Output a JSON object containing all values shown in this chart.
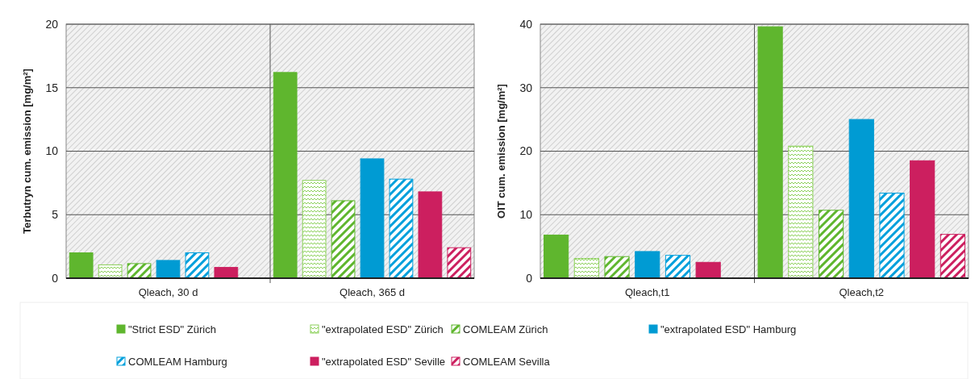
{
  "chart_data": [
    {
      "type": "bar",
      "ylabel": "Terbutryn cum. emission  [mg/m²]",
      "categories": [
        "Qleach, 30 d",
        "Qleach, 365 d"
      ],
      "ylim": [
        0,
        20
      ],
      "yticks": [
        0,
        5,
        10,
        15,
        20
      ],
      "grid": "y",
      "legend": "bottom",
      "series": [
        {
          "name": "\"Strict ESD\" Zürich",
          "color": "#5fb62e",
          "values": [
            2.0,
            16.2
          ]
        },
        {
          "name": "\"extrapolated ESD\" Zürich",
          "color": "#8cd05a",
          "values": [
            1.05,
            7.7
          ]
        },
        {
          "name": "COMLEAM Zürich",
          "color": "#5fb62e",
          "values": [
            1.15,
            6.1
          ]
        },
        {
          "name": "\"extrapolated ESD\" Hamburg",
          "color": "#009bd3",
          "values": [
            1.4,
            9.4
          ]
        },
        {
          "name": "COMLEAM Hamburg",
          "color": "#00a0dc",
          "values": [
            2.0,
            7.8
          ]
        },
        {
          "name": "\"extrapolated ESD\" Seville",
          "color": "#cc1f5f",
          "values": [
            0.85,
            6.8
          ]
        },
        {
          "name": "COMLEAM Sevilla",
          "color": "#cc1f5f",
          "values": [
            null,
            2.4
          ]
        }
      ]
    },
    {
      "type": "bar",
      "ylabel": "OIT cum. emission  [mg/m²]",
      "categories": [
        "Qleach,t1",
        "Qleach,t2"
      ],
      "ylim": [
        0,
        40
      ],
      "yticks": [
        0,
        10,
        20,
        30,
        40
      ],
      "grid": "y",
      "series": [
        {
          "color": "#5fb62e",
          "values": [
            6.8,
            39.6
          ]
        },
        {
          "color": "#8cd05a",
          "values": [
            3.1,
            20.8
          ]
        },
        {
          "color": "#5fb62e",
          "values": [
            3.4,
            10.7
          ]
        },
        {
          "color": "#009bd3",
          "values": [
            4.2,
            25.0
          ]
        },
        {
          "color": "#00a0dc",
          "values": [
            3.6,
            13.4
          ]
        },
        {
          "color": "#cc1f5f",
          "values": [
            2.5,
            18.5
          ]
        },
        {
          "color": "#cc1f5f",
          "values": [
            null,
            6.9
          ]
        }
      ]
    }
  ]
}
